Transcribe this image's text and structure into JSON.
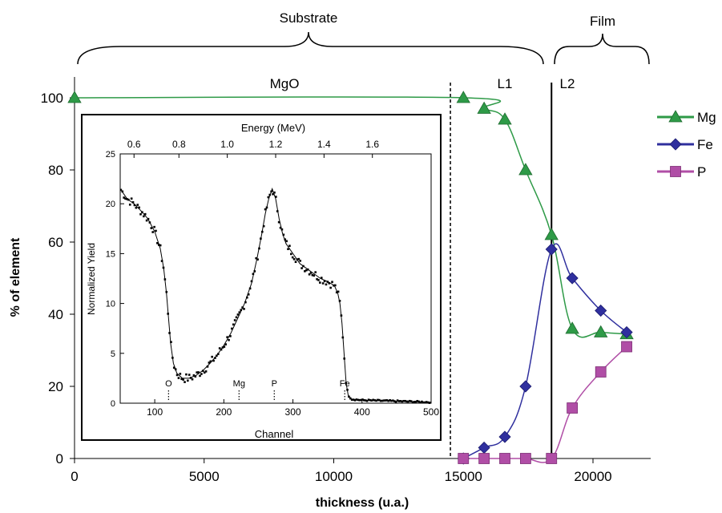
{
  "chart_data": {
    "type": "line",
    "xlabel": "thickness (u.a.)",
    "ylabel": "% of element",
    "xlim": [
      0,
      22500
    ],
    "ylim": [
      0,
      105
    ],
    "xticks": [
      "0",
      "5000",
      "10000",
      "15000",
      "20000"
    ],
    "xtick_values": [
      0,
      5000,
      10000,
      15000,
      20000
    ],
    "yticks": [
      "0",
      "20",
      "40",
      "60",
      "80",
      "100"
    ],
    "ytick_values": [
      0,
      20,
      40,
      60,
      80,
      100
    ],
    "grid": false,
    "legend_position": "right",
    "series": [
      {
        "name": "Mg",
        "color": "#2e9a47",
        "marker": "triangle",
        "points": [
          [
            0,
            100
          ],
          [
            15000,
            100
          ],
          [
            15800,
            97
          ],
          [
            16600,
            94
          ],
          [
            17400,
            80
          ],
          [
            18400,
            62
          ],
          [
            19200,
            36
          ],
          [
            20300,
            35
          ],
          [
            21300,
            34.5
          ]
        ]
      },
      {
        "name": "Fe",
        "color": "#2f2f9e",
        "marker": "diamond",
        "points": [
          [
            15000,
            0
          ],
          [
            15800,
            3
          ],
          [
            16600,
            6
          ],
          [
            17400,
            20
          ],
          [
            18400,
            58
          ],
          [
            19200,
            50
          ],
          [
            20300,
            41
          ],
          [
            21300,
            35
          ]
        ]
      },
      {
        "name": "P",
        "color": "#b04ea6",
        "marker": "square",
        "points": [
          [
            15000,
            0
          ],
          [
            15800,
            0
          ],
          [
            16600,
            0
          ],
          [
            17400,
            0
          ],
          [
            18400,
            0
          ],
          [
            19200,
            14
          ],
          [
            20300,
            24
          ],
          [
            21300,
            31
          ]
        ]
      }
    ],
    "regions": [
      {
        "label": "Substrate"
      },
      {
        "label": "Film"
      }
    ],
    "annotations": [
      {
        "label": "MgO"
      },
      {
        "label": "L1"
      },
      {
        "label": "L2"
      }
    ],
    "boundaries": [
      {
        "x": 14500,
        "style": "dashed"
      },
      {
        "x": 18400,
        "style": "solid"
      }
    ],
    "inset": {
      "type": "line",
      "xlabel": "Channel",
      "ylabel": "Normalized Yield",
      "top_label": "Energy (MeV)",
      "xlim": [
        50,
        500
      ],
      "ylim": [
        0,
        25
      ],
      "xticks": [
        "100",
        "200",
        "300",
        "400",
        "500"
      ],
      "xtick_values": [
        100,
        200,
        300,
        400,
        500
      ],
      "yticks": [
        "0",
        "5",
        "10",
        "15",
        "20",
        "25"
      ],
      "ytick_values": [
        0,
        5,
        10,
        15,
        20,
        25
      ],
      "top_ticks": [
        "0.6",
        "0.8",
        "1.0",
        "1.2",
        "1.4",
        "1.6"
      ],
      "top_tick_channels": [
        70,
        135,
        205,
        275,
        345,
        415
      ],
      "element_markers": [
        {
          "label": "O",
          "channel": 120
        },
        {
          "label": "Mg",
          "channel": 222
        },
        {
          "label": "P",
          "channel": 273
        },
        {
          "label": "Fe",
          "channel": 375
        }
      ],
      "curve": [
        [
          50,
          21.5
        ],
        [
          60,
          20.5
        ],
        [
          70,
          20
        ],
        [
          80,
          19.3
        ],
        [
          90,
          18.5
        ],
        [
          100,
          17.2
        ],
        [
          108,
          15.5
        ],
        [
          113,
          13.5
        ],
        [
          117,
          11
        ],
        [
          120,
          8.5
        ],
        [
          123,
          6
        ],
        [
          127,
          4
        ],
        [
          132,
          3
        ],
        [
          140,
          2.5
        ],
        [
          150,
          2.5
        ],
        [
          160,
          2.8
        ],
        [
          170,
          3.3
        ],
        [
          180,
          4
        ],
        [
          190,
          4.8
        ],
        [
          200,
          5.8
        ],
        [
          210,
          7
        ],
        [
          220,
          8.5
        ],
        [
          230,
          10
        ],
        [
          240,
          12
        ],
        [
          248,
          14.5
        ],
        [
          255,
          17
        ],
        [
          260,
          19
        ],
        [
          265,
          20.5
        ],
        [
          270,
          21.5
        ],
        [
          275,
          20.5
        ],
        [
          280,
          18.5
        ],
        [
          285,
          17
        ],
        [
          290,
          16
        ],
        [
          300,
          15
        ],
        [
          310,
          14
        ],
        [
          320,
          13.5
        ],
        [
          330,
          13
        ],
        [
          340,
          12.5
        ],
        [
          350,
          12.2
        ],
        [
          360,
          11.8
        ],
        [
          365,
          11
        ],
        [
          368,
          10
        ],
        [
          371,
          8
        ],
        [
          373,
          6
        ],
        [
          375,
          4
        ],
        [
          377,
          2
        ],
        [
          380,
          0.8
        ],
        [
          385,
          0.4
        ],
        [
          400,
          0.3
        ],
        [
          450,
          0.2
        ],
        [
          500,
          0.1
        ]
      ]
    }
  }
}
